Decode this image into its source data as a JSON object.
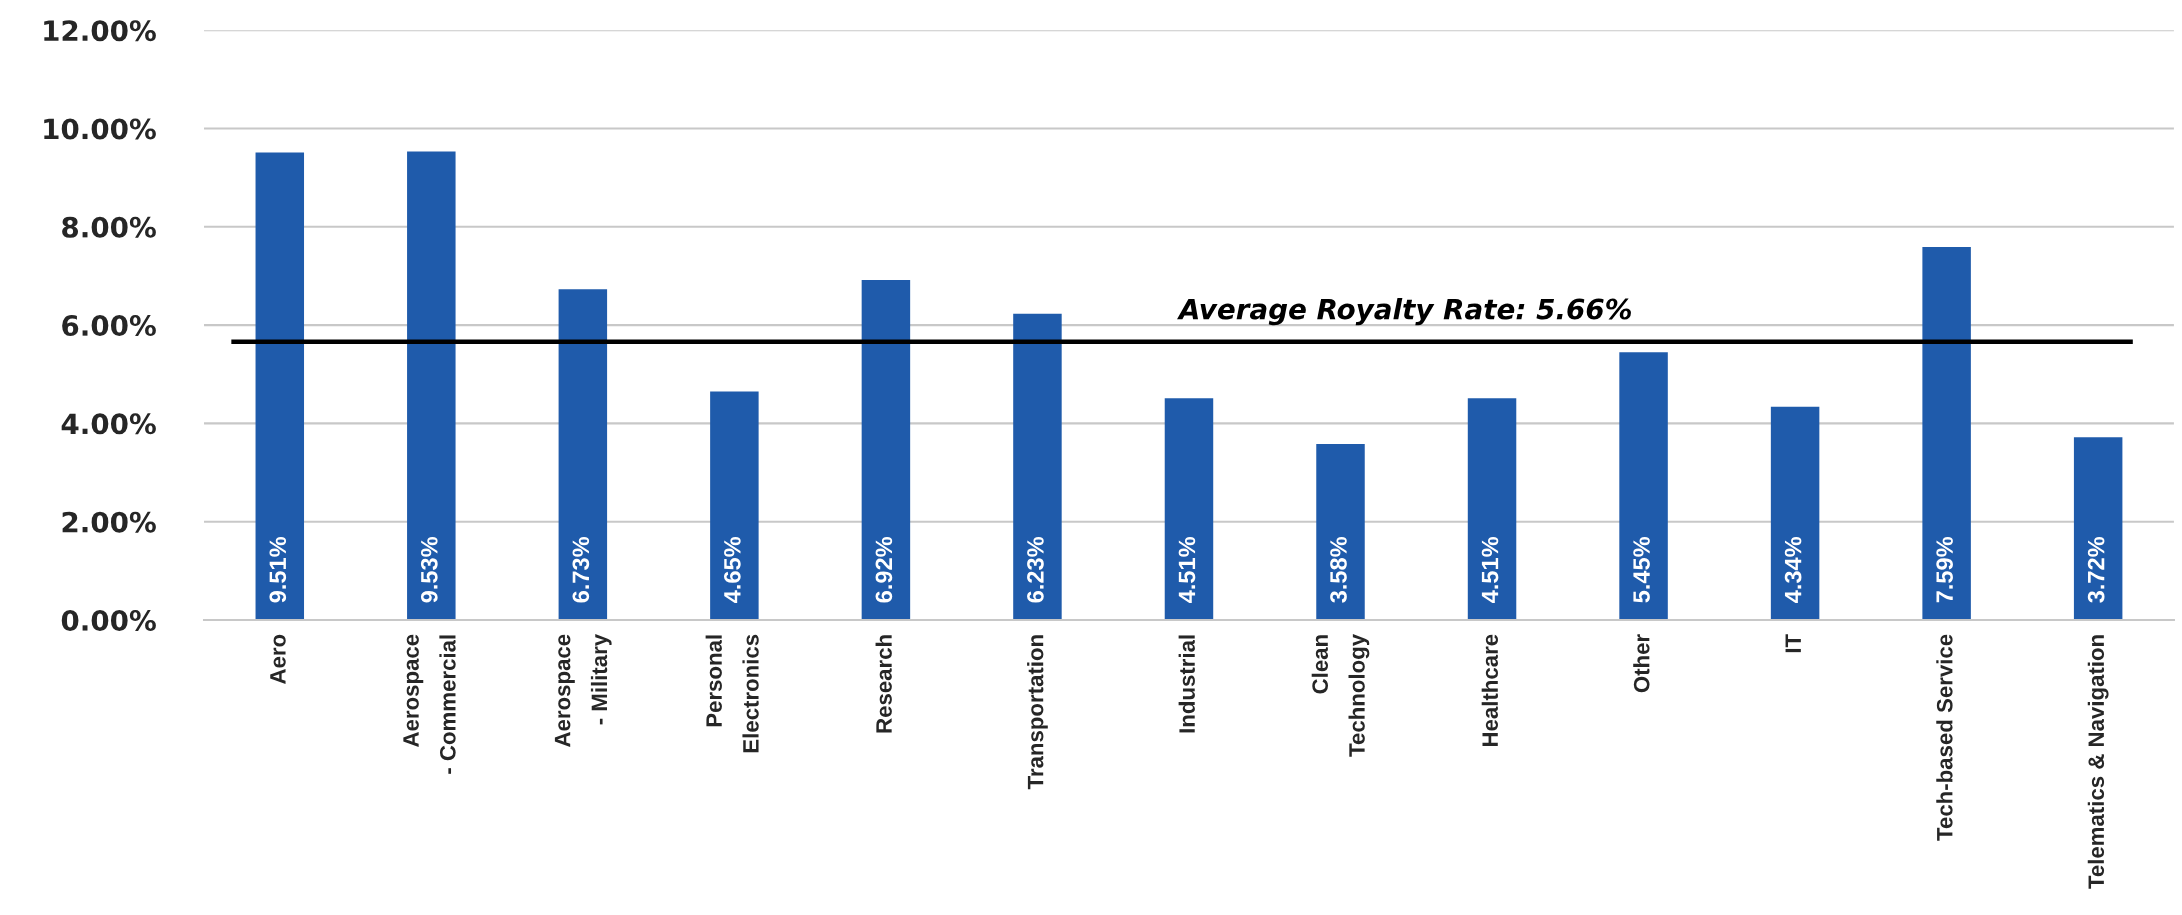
{
  "chart_data": {
    "type": "bar",
    "categories": [
      "Aero",
      "Aerospace\n- Commercial",
      "Aerospace\n- Military",
      "Personal\nElectronics",
      "Research",
      "Transportation",
      "Industrial",
      "Clean\nTechnology",
      "Healthcare",
      "Other",
      "IT",
      "Tech-based Service",
      "Telematics & Navigation"
    ],
    "values": [
      9.51,
      9.53,
      6.73,
      4.65,
      6.92,
      6.23,
      4.51,
      3.58,
      4.51,
      5.45,
      4.34,
      7.59,
      3.72
    ],
    "value_labels": [
      "9.51%",
      "9.53%",
      "6.73%",
      "4.65%",
      "6.92%",
      "6.23%",
      "4.51%",
      "3.58%",
      "4.51%",
      "5.45%",
      "4.34%",
      "7.59%",
      "3.72%"
    ],
    "color": "#1f5bab",
    "ylim": [
      0,
      12
    ],
    "yticks": [
      {
        "value": 0,
        "label": "0.00%"
      },
      {
        "value": 2,
        "label": "2.00%"
      },
      {
        "value": 4,
        "label": "4.00%"
      },
      {
        "value": 6,
        "label": "6.00%"
      },
      {
        "value": 8,
        "label": "8.00%"
      },
      {
        "value": 10,
        "label": "10.00%"
      },
      {
        "value": 12,
        "label": "12.00%"
      }
    ],
    "grid": "y",
    "ref_lines": [
      {
        "axis": "y",
        "value": 5.66,
        "label": "Average Royalty Rate: 5.66%",
        "color": "#000000"
      }
    ]
  }
}
